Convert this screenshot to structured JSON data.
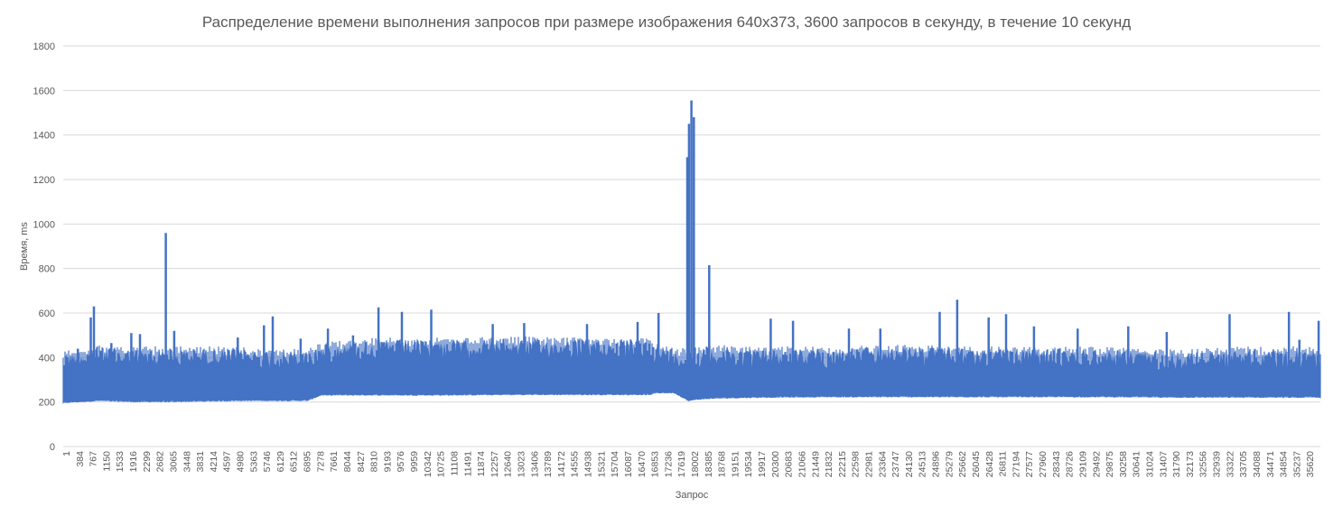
{
  "chart_data": {
    "type": "line",
    "title": "Распределение времени выполнения запросов при размере изображения 640x373, 3600 запросов в секунду,  в течение 10 секунд",
    "xlabel": "Запрос",
    "ylabel": "Время, ms",
    "ylim": [
      0,
      1800
    ],
    "yticks": [
      0,
      200,
      400,
      600,
      800,
      1000,
      1200,
      1400,
      1600,
      1800
    ],
    "xlim": [
      1,
      36000
    ],
    "grid": true,
    "legend": "none",
    "x_tick_labels": [
      "1",
      "384",
      "767",
      "1150",
      "1533",
      "1916",
      "2299",
      "2682",
      "3065",
      "3448",
      "3831",
      "4214",
      "4597",
      "4980",
      "5363",
      "5746",
      "6129",
      "6512",
      "6895",
      "7278",
      "7661",
      "8044",
      "8427",
      "8810",
      "9193",
      "9576",
      "9959",
      "10342",
      "10725",
      "11108",
      "11491",
      "11874",
      "12257",
      "12640",
      "13023",
      "13406",
      "13789",
      "14172",
      "14555",
      "14938",
      "15321",
      "15704",
      "16087",
      "16470",
      "16853",
      "17236",
      "17619",
      "18002",
      "18385",
      "18768",
      "19151",
      "19534",
      "19917",
      "20300",
      "20683",
      "21066",
      "21449",
      "21832",
      "22215",
      "22598",
      "22981",
      "23364",
      "23747",
      "24130",
      "24513",
      "24896",
      "25279",
      "25662",
      "26045",
      "26428",
      "26811",
      "27194",
      "27577",
      "27960",
      "28343",
      "28726",
      "29109",
      "29492",
      "29875",
      "30258",
      "30641",
      "31024",
      "31407",
      "31790",
      "32173",
      "32556",
      "32939",
      "33322",
      "33705",
      "34088",
      "34471",
      "34854",
      "35237",
      "35620"
    ],
    "series": [
      {
        "color": "#4472C4",
        "band": {
          "x": [
            1,
            500,
            1000,
            2000,
            3000,
            5000,
            7000,
            7400,
            9000,
            11000,
            13000,
            15000,
            16500,
            16800,
            17000,
            17500,
            17900,
            18100,
            18600,
            20000,
            22000,
            24000,
            26000,
            28000,
            30000,
            32000,
            34000,
            36000
          ],
          "low": [
            195,
            200,
            205,
            200,
            200,
            205,
            205,
            230,
            230,
            230,
            232,
            232,
            232,
            232,
            240,
            240,
            205,
            210,
            215,
            220,
            222,
            222,
            222,
            222,
            222,
            220,
            220,
            220
          ],
          "high": [
            420,
            440,
            450,
            440,
            440,
            440,
            430,
            460,
            480,
            480,
            485,
            480,
            480,
            480,
            460,
            440,
            430,
            440,
            450,
            440,
            440,
            450,
            440,
            440,
            440,
            430,
            440,
            440
          ]
        },
        "spikes": [
          {
            "x": 110,
            "y": 400
          },
          {
            "x": 420,
            "y": 440
          },
          {
            "x": 790,
            "y": 580
          },
          {
            "x": 880,
            "y": 630
          },
          {
            "x": 1380,
            "y": 465
          },
          {
            "x": 1950,
            "y": 510
          },
          {
            "x": 2200,
            "y": 505
          },
          {
            "x": 2940,
            "y": 960
          },
          {
            "x": 3180,
            "y": 520
          },
          {
            "x": 5000,
            "y": 490
          },
          {
            "x": 5750,
            "y": 545
          },
          {
            "x": 6000,
            "y": 585
          },
          {
            "x": 6800,
            "y": 485
          },
          {
            "x": 7580,
            "y": 530
          },
          {
            "x": 8300,
            "y": 500
          },
          {
            "x": 9030,
            "y": 625
          },
          {
            "x": 9700,
            "y": 605
          },
          {
            "x": 10540,
            "y": 615
          },
          {
            "x": 12300,
            "y": 550
          },
          {
            "x": 13200,
            "y": 555
          },
          {
            "x": 15000,
            "y": 550
          },
          {
            "x": 16450,
            "y": 560
          },
          {
            "x": 17050,
            "y": 600
          },
          {
            "x": 17870,
            "y": 1300
          },
          {
            "x": 17920,
            "y": 1450
          },
          {
            "x": 17990,
            "y": 1555
          },
          {
            "x": 18060,
            "y": 1480
          },
          {
            "x": 18500,
            "y": 815
          },
          {
            "x": 20260,
            "y": 575
          },
          {
            "x": 20900,
            "y": 565
          },
          {
            "x": 22500,
            "y": 530
          },
          {
            "x": 23400,
            "y": 530
          },
          {
            "x": 25100,
            "y": 605
          },
          {
            "x": 25600,
            "y": 660
          },
          {
            "x": 26500,
            "y": 580
          },
          {
            "x": 27000,
            "y": 595
          },
          {
            "x": 27800,
            "y": 540
          },
          {
            "x": 29050,
            "y": 530
          },
          {
            "x": 30500,
            "y": 540
          },
          {
            "x": 31600,
            "y": 515
          },
          {
            "x": 33400,
            "y": 595
          },
          {
            "x": 35100,
            "y": 605
          },
          {
            "x": 35400,
            "y": 480
          },
          {
            "x": 35950,
            "y": 565
          }
        ]
      }
    ]
  }
}
